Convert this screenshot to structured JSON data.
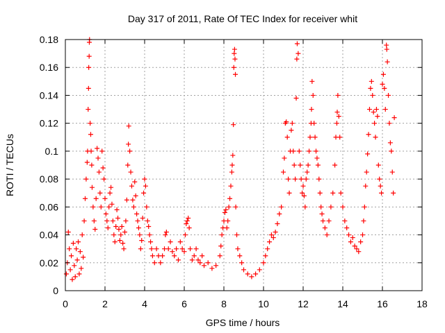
{
  "chart_data": {
    "type": "scatter",
    "title": "Day 317 of 2011, Rate Of TEC Index for receiver whit",
    "xlabel": "GPS time / hours",
    "ylabel": "ROTI / TECUs",
    "xlim": [
      0,
      18
    ],
    "ylim": [
      0,
      0.18
    ],
    "x_ticks": [
      0,
      2,
      4,
      6,
      8,
      10,
      12,
      14,
      16,
      18
    ],
    "y_ticks": [
      0,
      0.02,
      0.04,
      0.06,
      0.08,
      0.1,
      0.12,
      0.14,
      0.16,
      0.18
    ],
    "x_tick_labels": [
      "0",
      "2",
      "4",
      "6",
      "8",
      "10",
      "12",
      "14",
      "16",
      "18"
    ],
    "y_tick_labels": [
      "0",
      "0.02",
      "0.04",
      "0.06",
      "0.08",
      "0.1",
      "0.12",
      "0.14",
      "0.16",
      "0.18"
    ],
    "grid": true,
    "marker": "+",
    "series": [
      {
        "name": "ROTI",
        "color": "#ff0000",
        "points": [
          [
            0.05,
            0.012
          ],
          [
            0.1,
            0.02
          ],
          [
            0.15,
            0.042
          ],
          [
            0.2,
            0.03
          ],
          [
            0.25,
            0.015
          ],
          [
            0.3,
            0.025
          ],
          [
            0.35,
            0.008
          ],
          [
            0.4,
            0.034
          ],
          [
            0.45,
            0.018
          ],
          [
            0.5,
            0.01
          ],
          [
            0.55,
            0.03
          ],
          [
            0.6,
            0.022
          ],
          [
            0.65,
            0.035
          ],
          [
            0.7,
            0.012
          ],
          [
            0.75,
            0.028
          ],
          [
            0.8,
            0.016
          ],
          [
            0.85,
            0.04
          ],
          [
            0.9,
            0.024
          ],
          [
            0.95,
            0.05
          ],
          [
            1.0,
            0.066
          ],
          [
            1.05,
            0.08
          ],
          [
            1.1,
            0.092
          ],
          [
            1.12,
            0.1
          ],
          [
            1.15,
            0.13
          ],
          [
            1.17,
            0.145
          ],
          [
            1.18,
            0.16
          ],
          [
            1.2,
            0.168
          ],
          [
            1.21,
            0.178
          ],
          [
            1.22,
            0.18
          ],
          [
            1.25,
            0.12
          ],
          [
            1.28,
            0.112
          ],
          [
            1.3,
            0.1
          ],
          [
            1.33,
            0.09
          ],
          [
            1.35,
            0.074
          ],
          [
            1.4,
            0.06
          ],
          [
            1.45,
            0.05
          ],
          [
            1.5,
            0.044
          ],
          [
            1.55,
            0.066
          ],
          [
            1.6,
            0.102
          ],
          [
            1.65,
            0.095
          ],
          [
            1.7,
            0.085
          ],
          [
            1.75,
            0.07
          ],
          [
            1.8,
            0.06
          ],
          [
            1.85,
            0.1
          ],
          [
            1.9,
            0.088
          ],
          [
            1.95,
            0.08
          ],
          [
            2.0,
            0.066
          ],
          [
            2.05,
            0.055
          ],
          [
            2.1,
            0.05
          ],
          [
            2.15,
            0.045
          ],
          [
            2.2,
            0.06
          ],
          [
            2.25,
            0.07
          ],
          [
            2.3,
            0.074
          ],
          [
            2.35,
            0.062
          ],
          [
            2.4,
            0.05
          ],
          [
            2.45,
            0.04
          ],
          [
            2.5,
            0.035
          ],
          [
            2.55,
            0.046
          ],
          [
            2.6,
            0.058
          ],
          [
            2.65,
            0.052
          ],
          [
            2.7,
            0.044
          ],
          [
            2.75,
            0.036
          ],
          [
            2.8,
            0.04
          ],
          [
            2.85,
            0.046
          ],
          [
            2.9,
            0.034
          ],
          [
            2.95,
            0.03
          ],
          [
            3.0,
            0.042
          ],
          [
            3.05,
            0.05
          ],
          [
            3.1,
            0.065
          ],
          [
            3.15,
            0.09
          ],
          [
            3.18,
            0.105
          ],
          [
            3.2,
            0.118
          ],
          [
            3.25,
            0.1
          ],
          [
            3.3,
            0.085
          ],
          [
            3.35,
            0.075
          ],
          [
            3.4,
            0.065
          ],
          [
            3.45,
            0.06
          ],
          [
            3.5,
            0.078
          ],
          [
            3.55,
            0.068
          ],
          [
            3.6,
            0.055
          ],
          [
            3.65,
            0.05
          ],
          [
            3.7,
            0.045
          ],
          [
            3.75,
            0.04
          ],
          [
            3.8,
            0.03
          ],
          [
            3.85,
            0.036
          ],
          [
            3.9,
            0.052
          ],
          [
            3.95,
            0.07
          ],
          [
            4.0,
            0.08
          ],
          [
            4.05,
            0.075
          ],
          [
            4.1,
            0.06
          ],
          [
            4.15,
            0.05
          ],
          [
            4.2,
            0.046
          ],
          [
            4.25,
            0.04
          ],
          [
            4.3,
            0.035
          ],
          [
            4.35,
            0.03
          ],
          [
            4.4,
            0.025
          ],
          [
            4.5,
            0.02
          ],
          [
            4.6,
            0.03
          ],
          [
            4.7,
            0.025
          ],
          [
            4.8,
            0.02
          ],
          [
            4.9,
            0.025
          ],
          [
            5.0,
            0.03
          ],
          [
            5.05,
            0.04
          ],
          [
            5.1,
            0.042
          ],
          [
            5.2,
            0.03
          ],
          [
            5.3,
            0.035
          ],
          [
            5.4,
            0.028
          ],
          [
            5.5,
            0.025
          ],
          [
            5.6,
            0.03
          ],
          [
            5.7,
            0.022
          ],
          [
            5.8,
            0.035
          ],
          [
            5.9,
            0.03
          ],
          [
            6.0,
            0.028
          ],
          [
            6.05,
            0.04
          ],
          [
            6.1,
            0.048
          ],
          [
            6.15,
            0.05
          ],
          [
            6.2,
            0.052
          ],
          [
            6.25,
            0.045
          ],
          [
            6.3,
            0.03
          ],
          [
            6.4,
            0.022
          ],
          [
            6.5,
            0.025
          ],
          [
            6.6,
            0.03
          ],
          [
            6.7,
            0.022
          ],
          [
            6.8,
            0.02
          ],
          [
            6.9,
            0.025
          ],
          [
            7.0,
            0.018
          ],
          [
            7.2,
            0.02
          ],
          [
            7.4,
            0.016
          ],
          [
            7.6,
            0.018
          ],
          [
            7.8,
            0.025
          ],
          [
            7.85,
            0.032
          ],
          [
            7.9,
            0.04
          ],
          [
            7.95,
            0.045
          ],
          [
            8.0,
            0.05
          ],
          [
            8.05,
            0.056
          ],
          [
            8.1,
            0.058
          ],
          [
            8.15,
            0.045
          ],
          [
            8.2,
            0.05
          ],
          [
            8.25,
            0.06
          ],
          [
            8.3,
            0.066
          ],
          [
            8.35,
            0.075
          ],
          [
            8.4,
            0.085
          ],
          [
            8.42,
            0.09
          ],
          [
            8.45,
            0.097
          ],
          [
            8.48,
            0.119
          ],
          [
            8.5,
            0.16
          ],
          [
            8.52,
            0.17
          ],
          [
            8.54,
            0.173
          ],
          [
            8.56,
            0.166
          ],
          [
            8.58,
            0.155
          ],
          [
            8.6,
            0.06
          ],
          [
            8.65,
            0.04
          ],
          [
            8.7,
            0.03
          ],
          [
            8.8,
            0.025
          ],
          [
            8.9,
            0.02
          ],
          [
            9.0,
            0.015
          ],
          [
            9.2,
            0.012
          ],
          [
            9.4,
            0.01
          ],
          [
            9.6,
            0.012
          ],
          [
            9.8,
            0.015
          ],
          [
            10.0,
            0.02
          ],
          [
            10.1,
            0.025
          ],
          [
            10.2,
            0.03
          ],
          [
            10.3,
            0.035
          ],
          [
            10.4,
            0.04
          ],
          [
            10.5,
            0.038
          ],
          [
            10.6,
            0.042
          ],
          [
            10.7,
            0.048
          ],
          [
            10.8,
            0.055
          ],
          [
            10.9,
            0.06
          ],
          [
            11.0,
            0.085
          ],
          [
            11.05,
            0.095
          ],
          [
            11.1,
            0.12
          ],
          [
            11.15,
            0.121
          ],
          [
            11.2,
            0.11
          ],
          [
            11.25,
            0.08
          ],
          [
            11.3,
            0.07
          ],
          [
            11.35,
            0.1
          ],
          [
            11.4,
            0.115
          ],
          [
            11.45,
            0.12
          ],
          [
            11.5,
            0.1
          ],
          [
            11.55,
            0.09
          ],
          [
            11.6,
            0.08
          ],
          [
            11.65,
            0.138
          ],
          [
            11.68,
            0.166
          ],
          [
            11.7,
            0.177
          ],
          [
            11.75,
            0.17
          ],
          [
            11.8,
            0.1
          ],
          [
            11.85,
            0.09
          ],
          [
            11.9,
            0.08
          ],
          [
            11.95,
            0.07
          ],
          [
            12.0,
            0.075
          ],
          [
            12.05,
            0.068
          ],
          [
            12.1,
            0.06
          ],
          [
            12.15,
            0.08
          ],
          [
            12.2,
            0.085
          ],
          [
            12.25,
            0.09
          ],
          [
            12.3,
            0.1
          ],
          [
            12.35,
            0.11
          ],
          [
            12.4,
            0.12
          ],
          [
            12.42,
            0.13
          ],
          [
            12.45,
            0.15
          ],
          [
            12.5,
            0.14
          ],
          [
            12.55,
            0.12
          ],
          [
            12.6,
            0.11
          ],
          [
            12.65,
            0.1
          ],
          [
            12.7,
            0.095
          ],
          [
            12.75,
            0.09
          ],
          [
            12.8,
            0.08
          ],
          [
            12.85,
            0.07
          ],
          [
            12.9,
            0.06
          ],
          [
            12.95,
            0.055
          ],
          [
            13.0,
            0.05
          ],
          [
            13.1,
            0.045
          ],
          [
            13.2,
            0.04
          ],
          [
            13.3,
            0.05
          ],
          [
            13.4,
            0.06
          ],
          [
            13.5,
            0.07
          ],
          [
            13.6,
            0.09
          ],
          [
            13.65,
            0.11
          ],
          [
            13.7,
            0.12
          ],
          [
            13.72,
            0.128
          ],
          [
            13.75,
            0.14
          ],
          [
            13.8,
            0.125
          ],
          [
            13.85,
            0.11
          ],
          [
            13.9,
            0.07
          ],
          [
            14.0,
            0.06
          ],
          [
            14.1,
            0.05
          ],
          [
            14.2,
            0.045
          ],
          [
            14.3,
            0.04
          ],
          [
            14.4,
            0.035
          ],
          [
            14.5,
            0.038
          ],
          [
            14.6,
            0.032
          ],
          [
            14.7,
            0.03
          ],
          [
            14.8,
            0.028
          ],
          [
            14.9,
            0.035
          ],
          [
            15.0,
            0.04
          ],
          [
            15.05,
            0.05
          ],
          [
            15.1,
            0.06
          ],
          [
            15.15,
            0.075
          ],
          [
            15.2,
            0.085
          ],
          [
            15.25,
            0.098
          ],
          [
            15.3,
            0.112
          ],
          [
            15.35,
            0.13
          ],
          [
            15.4,
            0.145
          ],
          [
            15.45,
            0.15
          ],
          [
            15.5,
            0.14
          ],
          [
            15.55,
            0.128
          ],
          [
            15.6,
            0.12
          ],
          [
            15.65,
            0.11
          ],
          [
            15.7,
            0.13
          ],
          [
            15.75,
            0.125
          ],
          [
            15.8,
            0.09
          ],
          [
            15.85,
            0.08
          ],
          [
            15.9,
            0.075
          ],
          [
            15.95,
            0.07
          ],
          [
            16.0,
            0.148
          ],
          [
            16.05,
            0.155
          ],
          [
            16.1,
            0.145
          ],
          [
            16.15,
            0.13
          ],
          [
            16.2,
            0.176
          ],
          [
            16.22,
            0.173
          ],
          [
            16.25,
            0.164
          ],
          [
            16.3,
            0.14
          ],
          [
            16.35,
            0.12
          ],
          [
            16.4,
            0.106
          ],
          [
            16.45,
            0.1
          ],
          [
            16.5,
            0.085
          ],
          [
            16.55,
            0.07
          ],
          [
            16.6,
            0.124
          ]
        ]
      }
    ]
  }
}
